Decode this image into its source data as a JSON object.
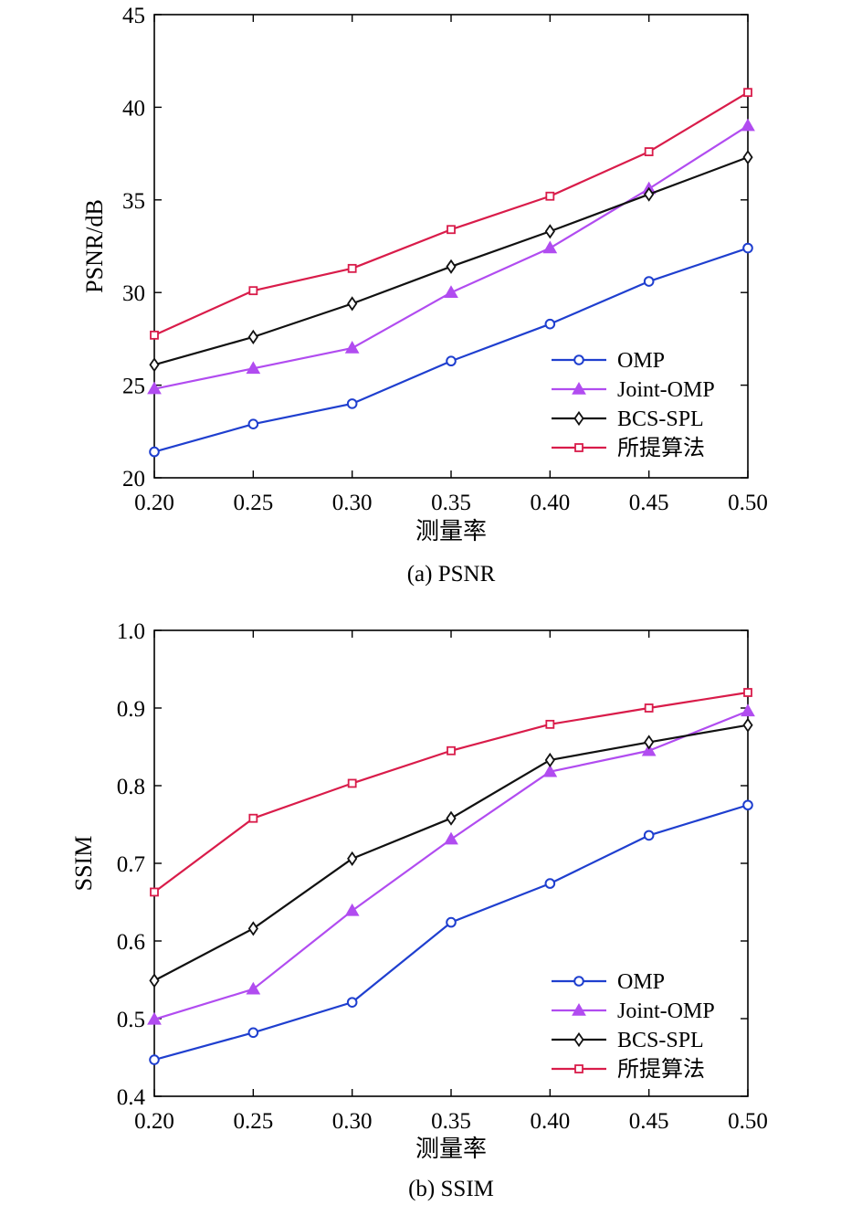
{
  "chart_data": [
    {
      "type": "line",
      "caption": "(a) PSNR",
      "xlabel": "测量率",
      "ylabel": "PSNR/dB",
      "x": [
        0.2,
        0.25,
        0.3,
        0.35,
        0.4,
        0.45,
        0.5
      ],
      "x_ticks": [
        "0.20",
        "0.25",
        "0.30",
        "0.35",
        "0.40",
        "0.45",
        "0.50"
      ],
      "xlim": [
        0.2,
        0.5
      ],
      "ylim": [
        20,
        45
      ],
      "y_ticks": [
        "20",
        "25",
        "30",
        "35",
        "40",
        "45"
      ],
      "grid": false,
      "legend_position": "bottom-right",
      "series": [
        {
          "name": "OMP",
          "color": "#1f3fcf",
          "marker": "circle",
          "values": [
            21.4,
            22.9,
            24.0,
            26.3,
            28.3,
            30.6,
            32.4
          ]
        },
        {
          "name": "Joint-OMP",
          "color": "#b14cf0",
          "marker": "triangle",
          "values": [
            24.8,
            25.9,
            27.0,
            30.0,
            32.4,
            35.6,
            39.0
          ]
        },
        {
          "name": "BCS-SPL",
          "color": "#111111",
          "marker": "diamond",
          "values": [
            26.1,
            27.6,
            29.4,
            31.4,
            33.3,
            35.3,
            37.3
          ]
        },
        {
          "name": "所提算法",
          "color": "#d91c4a",
          "marker": "square",
          "values": [
            27.7,
            30.1,
            31.3,
            33.4,
            35.2,
            37.6,
            40.8
          ]
        }
      ]
    },
    {
      "type": "line",
      "caption": "(b) SSIM",
      "xlabel": "测量率",
      "ylabel": "SSIM",
      "x": [
        0.2,
        0.25,
        0.3,
        0.35,
        0.4,
        0.45,
        0.5
      ],
      "x_ticks": [
        "0.20",
        "0.25",
        "0.30",
        "0.35",
        "0.40",
        "0.45",
        "0.50"
      ],
      "xlim": [
        0.2,
        0.5
      ],
      "ylim": [
        0.4,
        1.0
      ],
      "y_ticks": [
        "0.4",
        "0.5",
        "0.6",
        "0.7",
        "0.8",
        "0.9",
        "1.0"
      ],
      "grid": false,
      "legend_position": "bottom-right",
      "series": [
        {
          "name": "OMP",
          "color": "#1f3fcf",
          "marker": "circle",
          "values": [
            0.447,
            0.482,
            0.521,
            0.624,
            0.674,
            0.736,
            0.775
          ]
        },
        {
          "name": "Joint-OMP",
          "color": "#b14cf0",
          "marker": "triangle",
          "values": [
            0.499,
            0.538,
            0.639,
            0.731,
            0.818,
            0.845,
            0.896
          ]
        },
        {
          "name": "BCS-SPL",
          "color": "#111111",
          "marker": "diamond",
          "values": [
            0.549,
            0.616,
            0.706,
            0.758,
            0.833,
            0.856,
            0.878
          ]
        },
        {
          "name": "所提算法",
          "color": "#d91c4a",
          "marker": "square",
          "values": [
            0.663,
            0.758,
            0.803,
            0.845,
            0.879,
            0.9,
            0.92
          ]
        }
      ]
    }
  ]
}
